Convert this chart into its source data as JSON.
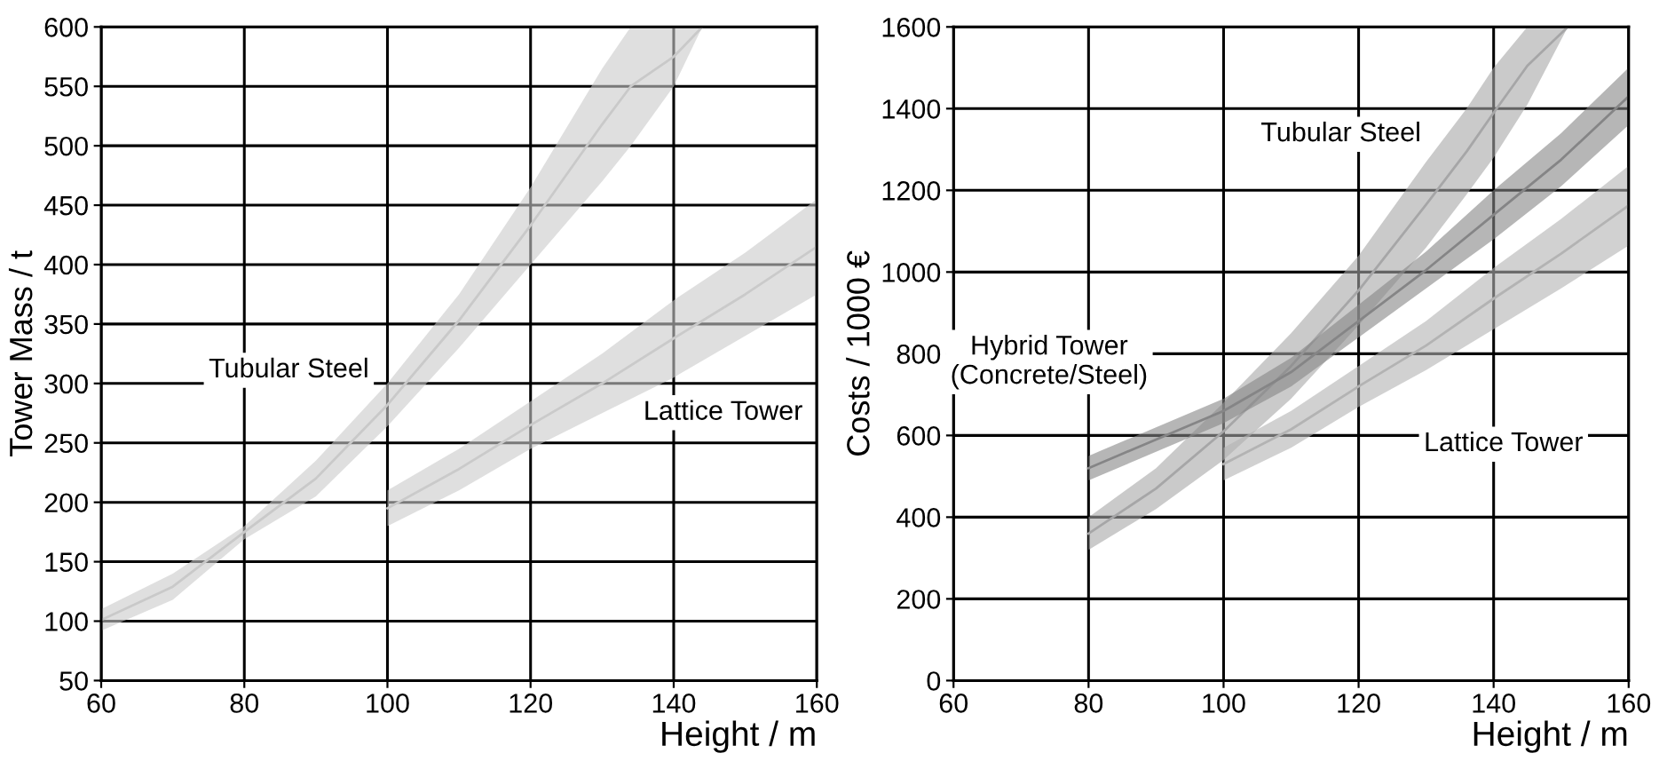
{
  "chart_data": [
    {
      "type": "line",
      "xlabel": "Height / m",
      "ylabel": "Tower Mass / t",
      "xlim": [
        60,
        160
      ],
      "ylim": [
        50,
        600
      ],
      "xticks": [
        60,
        80,
        100,
        120,
        140,
        160
      ],
      "yticks": [
        50,
        100,
        150,
        200,
        250,
        300,
        350,
        400,
        450,
        500,
        550,
        600
      ],
      "grid": true,
      "series": [
        {
          "name": "Tubular Steel",
          "color": "#c9c9c9",
          "x": [
            60,
            70,
            80,
            90,
            100,
            110,
            120,
            130,
            134,
            140,
            144
          ],
          "values": [
            101,
            129,
            175,
            220,
            282,
            353,
            433,
            518,
            550,
            575,
            600
          ],
          "lower": [
            92,
            118,
            169,
            205,
            264,
            330,
            400,
            470,
            500,
            550,
            600
          ],
          "upper": [
            110,
            140,
            180,
            235,
            300,
            375,
            465,
            565,
            600,
            600,
            600
          ]
        },
        {
          "name": "Lattice Tower",
          "color": "#cacaca",
          "x": [
            100,
            110,
            120,
            130,
            140,
            150,
            160
          ],
          "values": [
            195,
            228,
            265,
            300,
            338,
            375,
            415
          ],
          "lower": [
            180,
            210,
            245,
            275,
            305,
            340,
            375
          ],
          "upper": [
            210,
            245,
            285,
            325,
            370,
            410,
            455
          ]
        }
      ]
    },
    {
      "type": "line",
      "xlabel": "Height / m",
      "ylabel": "Costs / 1000 €",
      "xlim": [
        60,
        160
      ],
      "ylim": [
        0,
        1600
      ],
      "xticks": [
        60,
        80,
        100,
        120,
        140,
        160
      ],
      "yticks": [
        0,
        200,
        400,
        600,
        800,
        1000,
        1200,
        1400,
        1600
      ],
      "grid": true,
      "series": [
        {
          "name": "Tubular Steel",
          "color": "#a6a6a7",
          "x": [
            80,
            90,
            100,
            110,
            120,
            130,
            136,
            140,
            145,
            151
          ],
          "values": [
            360,
            470,
            610,
            770,
            955,
            1165,
            1295,
            1390,
            1505,
            1600
          ],
          "lower": [
            320,
            420,
            540,
            690,
            870,
            1060,
            1190,
            1280,
            1410,
            1600
          ],
          "upper": [
            400,
            520,
            680,
            850,
            1040,
            1270,
            1400,
            1500,
            1600,
            1600
          ]
        },
        {
          "name": "Hybrid Tower\n(Concrete/Steel)",
          "color": "#858586",
          "x": [
            80,
            90,
            100,
            110,
            120,
            130,
            140,
            150,
            160
          ],
          "values": [
            520,
            590,
            660,
            755,
            880,
            1005,
            1140,
            1275,
            1430
          ],
          "lower": [
            490,
            560,
            630,
            720,
            840,
            960,
            1080,
            1210,
            1360
          ],
          "upper": [
            550,
            620,
            690,
            790,
            920,
            1050,
            1200,
            1340,
            1500
          ]
        },
        {
          "name": "Lattice Tower",
          "color": "#b3b3b3",
          "x": [
            100,
            110,
            120,
            130,
            140,
            150,
            160
          ],
          "values": [
            530,
            615,
            720,
            820,
            935,
            1045,
            1163
          ],
          "lower": [
            490,
            570,
            670,
            760,
            860,
            960,
            1065
          ],
          "upper": [
            570,
            660,
            770,
            880,
            1010,
            1130,
            1260
          ]
        }
      ]
    }
  ]
}
